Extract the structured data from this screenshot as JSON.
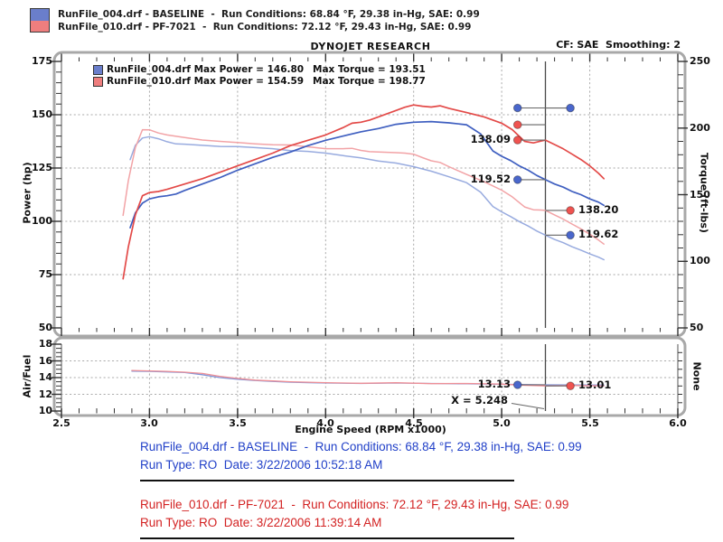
{
  "header": {
    "title": "DYNOJET RESEARCH",
    "cf_smoothing": "CF: SAE  Smoothing: 2"
  },
  "top_legend": {
    "rows": [
      {
        "text": "RunFile_004.drf - BASELINE  -  Run Conditions: 68.84 °F, 29.38 in-Hg, SAE: 0.99"
      },
      {
        "text": "RunFile_010.drf - PF-7021  -  Run Conditions: 72.12 °F, 29.43 in-Hg, SAE: 0.99"
      }
    ]
  },
  "colors": {
    "run1_power": "#3f5fc0",
    "run1_torque": "#98abdf",
    "run2_power": "#e34a48",
    "run2_torque": "#f2a3a6",
    "run1_swatch": "#6a7ecb",
    "run2_swatch": "#ef7e7e",
    "run1_dot": "#4a67cc",
    "run2_dot": "#ef5350",
    "footer_blue": "#2140c8",
    "footer_red": "#d32222",
    "grid": "#a9a9a9",
    "frame": "#a8a8a8",
    "cursor": "#4a4a4a"
  },
  "chart_data": [
    {
      "type": "line",
      "name": "power-torque-chart",
      "xlabel": "Engine Speed (RPM x1000)",
      "ylabel_left": "Power (hp)",
      "ylabel_right": "Torque (ft-lbs)",
      "xlim": [
        2.5,
        6.0
      ],
      "ylim_left": [
        50,
        175
      ],
      "ylim_right": [
        50,
        250
      ],
      "x_ticks": [
        2.5,
        3.0,
        3.5,
        4.0,
        4.5,
        5.0,
        5.5,
        6.0
      ],
      "y_ticks_left": [
        175,
        150,
        125,
        100,
        75,
        50
      ],
      "y_ticks_right": [
        250,
        200,
        150,
        100,
        50
      ],
      "grid": "dotted",
      "cursor_x": 5.248,
      "inner_legend": [
        {
          "swatch": "#6a7ecb",
          "power_text": "RunFile_004.drf Max Power = 146.80",
          "torque_text": "Max Torque = 193.51"
        },
        {
          "swatch": "#ef7e7e",
          "power_text": "RunFile_010.drf Max Power = 154.59",
          "torque_text": "Max Torque = 198.77"
        }
      ],
      "max_values": {
        "runfile_004": {
          "max_power": 146.8,
          "max_torque": 193.51
        },
        "runfile_010": {
          "max_power": 154.59,
          "max_torque": 198.77
        }
      },
      "series": [
        {
          "name": "RunFile_004.drf Torque",
          "axis": "right",
          "color": "#98abdf",
          "width": 1.5,
          "points": [
            [
              2.89,
              176.3
            ],
            [
              2.92,
              187.1
            ],
            [
              2.96,
              192.5
            ],
            [
              3.0,
              193.5
            ],
            [
              3.05,
              192.0
            ],
            [
              3.1,
              189.7
            ],
            [
              3.15,
              188.1
            ],
            [
              3.2,
              187.9
            ],
            [
              3.3,
              187.0
            ],
            [
              3.4,
              186.2
            ],
            [
              3.5,
              186.1
            ],
            [
              3.6,
              185.3
            ],
            [
              3.7,
              184.5
            ],
            [
              3.8,
              183.1
            ],
            [
              3.9,
              182.5
            ],
            [
              4.0,
              181.2
            ],
            [
              4.1,
              179.3
            ],
            [
              4.2,
              177.6
            ],
            [
              4.3,
              175.3
            ],
            [
              4.4,
              173.7
            ],
            [
              4.5,
              171.0
            ],
            [
              4.6,
              167.6
            ],
            [
              4.7,
              163.4
            ],
            [
              4.8,
              159.0
            ],
            [
              4.88,
              151.8
            ],
            [
              4.95,
              141.1
            ],
            [
              5.0,
              137.1
            ],
            [
              5.05,
              133.6
            ],
            [
              5.1,
              129.8
            ],
            [
              5.15,
              126.5
            ],
            [
              5.2,
              122.7
            ],
            [
              5.248,
              119.62
            ],
            [
              5.3,
              116.4
            ],
            [
              5.35,
              113.9
            ],
            [
              5.4,
              110.9
            ],
            [
              5.45,
              108.4
            ],
            [
              5.5,
              105.5
            ],
            [
              5.55,
              103.1
            ],
            [
              5.58,
              101.2
            ]
          ]
        },
        {
          "name": "RunFile_010.drf Torque",
          "axis": "right",
          "color": "#f2a3a6",
          "width": 1.5,
          "points": [
            [
              2.85,
              134.5
            ],
            [
              2.88,
              160.5
            ],
            [
              2.92,
              185.3
            ],
            [
              2.96,
              198.77
            ],
            [
              3.0,
              198.7
            ],
            [
              3.05,
              196.3
            ],
            [
              3.1,
              194.8
            ],
            [
              3.2,
              192.9
            ],
            [
              3.3,
              191.0
            ],
            [
              3.4,
              190.0
            ],
            [
              3.5,
              189.1
            ],
            [
              3.6,
              188.2
            ],
            [
              3.7,
              187.4
            ],
            [
              3.8,
              187.3
            ],
            [
              3.9,
              185.9
            ],
            [
              4.0,
              184.5
            ],
            [
              4.1,
              184.5
            ],
            [
              4.15,
              184.8
            ],
            [
              4.2,
              183.2
            ],
            [
              4.25,
              182.3
            ],
            [
              4.3,
              182.0
            ],
            [
              4.4,
              181.5
            ],
            [
              4.45,
              181.2
            ],
            [
              4.5,
              180.4
            ],
            [
              4.55,
              177.8
            ],
            [
              4.6,
              175.4
            ],
            [
              4.65,
              174.2
            ],
            [
              4.7,
              171.0
            ],
            [
              4.8,
              165.2
            ],
            [
              4.9,
              159.7
            ],
            [
              5.0,
              153.4
            ],
            [
              5.06,
              148.4
            ],
            [
              5.13,
              140.8
            ],
            [
              5.18,
              138.7
            ],
            [
              5.22,
              138.5
            ],
            [
              5.248,
              138.2
            ],
            [
              5.3,
              134.8
            ],
            [
              5.35,
              131.6
            ],
            [
              5.4,
              127.9
            ],
            [
              5.45,
              124.3
            ],
            [
              5.5,
              120.3
            ],
            [
              5.55,
              115.9
            ],
            [
              5.58,
              112.9
            ]
          ]
        },
        {
          "name": "RunFile_004.drf Power",
          "axis": "left",
          "color": "#3f5fc0",
          "width": 1.7,
          "points": [
            [
              2.89,
              97.0
            ],
            [
              2.92,
              104.0
            ],
            [
              2.96,
              108.5
            ],
            [
              3.0,
              110.5
            ],
            [
              3.05,
              111.5
            ],
            [
              3.1,
              112.0
            ],
            [
              3.15,
              112.8
            ],
            [
              3.2,
              114.5
            ],
            [
              3.3,
              117.5
            ],
            [
              3.4,
              120.5
            ],
            [
              3.5,
              124.0
            ],
            [
              3.6,
              127.0
            ],
            [
              3.7,
              130.0
            ],
            [
              3.8,
              132.5
            ],
            [
              3.9,
              135.5
            ],
            [
              4.0,
              138.0
            ],
            [
              4.1,
              140.0
            ],
            [
              4.2,
              142.0
            ],
            [
              4.3,
              143.5
            ],
            [
              4.4,
              145.5
            ],
            [
              4.5,
              146.5
            ],
            [
              4.6,
              146.8
            ],
            [
              4.7,
              146.2
            ],
            [
              4.8,
              145.3
            ],
            [
              4.88,
              141.0
            ],
            [
              4.95,
              133.0
            ],
            [
              5.0,
              130.5
            ],
            [
              5.05,
              128.5
            ],
            [
              5.1,
              126.0
            ],
            [
              5.15,
              124.0
            ],
            [
              5.2,
              121.5
            ],
            [
              5.248,
              119.52
            ],
            [
              5.3,
              117.5
            ],
            [
              5.35,
              116.0
            ],
            [
              5.4,
              114.0
            ],
            [
              5.45,
              112.5
            ],
            [
              5.5,
              110.5
            ],
            [
              5.55,
              109.0
            ],
            [
              5.58,
              107.5
            ]
          ]
        },
        {
          "name": "RunFile_010.drf Power",
          "axis": "left",
          "color": "#e34a48",
          "width": 1.7,
          "points": [
            [
              2.85,
              73.0
            ],
            [
              2.88,
              88.0
            ],
            [
              2.92,
              103.0
            ],
            [
              2.96,
              112.0
            ],
            [
              3.0,
              113.5
            ],
            [
              3.05,
              114.0
            ],
            [
              3.1,
              115.0
            ],
            [
              3.2,
              117.5
            ],
            [
              3.3,
              120.0
            ],
            [
              3.4,
              123.0
            ],
            [
              3.5,
              126.0
            ],
            [
              3.6,
              129.0
            ],
            [
              3.7,
              132.0
            ],
            [
              3.8,
              135.5
            ],
            [
              3.9,
              138.0
            ],
            [
              4.0,
              140.5
            ],
            [
              4.1,
              144.0
            ],
            [
              4.15,
              146.0
            ],
            [
              4.2,
              146.5
            ],
            [
              4.25,
              147.5
            ],
            [
              4.3,
              149.0
            ],
            [
              4.4,
              152.0
            ],
            [
              4.45,
              153.5
            ],
            [
              4.5,
              154.59
            ],
            [
              4.55,
              154.0
            ],
            [
              4.6,
              153.6
            ],
            [
              4.65,
              154.2
            ],
            [
              4.7,
              153.0
            ],
            [
              4.8,
              151.0
            ],
            [
              4.9,
              149.0
            ],
            [
              5.0,
              146.0
            ],
            [
              5.06,
              143.0
            ],
            [
              5.13,
              137.5
            ],
            [
              5.18,
              136.8
            ],
            [
              5.22,
              137.6
            ],
            [
              5.248,
              138.09
            ],
            [
              5.3,
              136.0
            ],
            [
              5.35,
              134.0
            ],
            [
              5.4,
              131.5
            ],
            [
              5.45,
              129.0
            ],
            [
              5.5,
              126.0
            ],
            [
              5.55,
              122.5
            ],
            [
              5.58,
              120.0
            ]
          ]
        }
      ],
      "cursor_labels": [
        {
          "text": "138.09",
          "value": 138.09,
          "axis": "left",
          "dot_rpm": 5.09,
          "side": "left",
          "dot_color": "#ef5350"
        },
        {
          "text": "119.52",
          "value": 119.52,
          "axis": "left",
          "dot_rpm": 5.09,
          "side": "left",
          "dot_color": "#4a67cc"
        },
        {
          "text": "138.20",
          "value": 138.2,
          "axis": "right",
          "dot_rpm": 5.39,
          "side": "right",
          "dot_color": "#ef5350"
        },
        {
          "text": "119.62",
          "value": 119.62,
          "axis": "right",
          "dot_rpm": 5.39,
          "side": "right",
          "dot_color": "#4a67cc"
        }
      ]
    },
    {
      "type": "line",
      "name": "air-fuel-chart",
      "ylabel_left": "Air/Fuel",
      "ylabel_right": "None",
      "ylim_left": [
        10,
        18
      ],
      "y_ticks_left": [
        18,
        16,
        14,
        12,
        10
      ],
      "grid": "dotted",
      "cursor_x": 5.248,
      "cursor_annotation": "X = 5.248",
      "series": [
        {
          "name": "RunFile_004.drf A/F",
          "color": "#8093d6",
          "width": 1.3,
          "points": [
            [
              2.9,
              14.78
            ],
            [
              3.0,
              14.75
            ],
            [
              3.1,
              14.68
            ],
            [
              3.2,
              14.6
            ],
            [
              3.3,
              14.35
            ],
            [
              3.4,
              14.0
            ],
            [
              3.5,
              13.8
            ],
            [
              3.6,
              13.65
            ],
            [
              3.7,
              13.55
            ],
            [
              3.8,
              13.45
            ],
            [
              3.9,
              13.4
            ],
            [
              4.0,
              13.35
            ],
            [
              4.2,
              13.3
            ],
            [
              4.4,
              13.35
            ],
            [
              4.6,
              13.3
            ],
            [
              4.8,
              13.25
            ],
            [
              5.0,
              13.2
            ],
            [
              5.1,
              13.17
            ],
            [
              5.248,
              13.13
            ],
            [
              5.4,
              13.12
            ],
            [
              5.58,
              13.1
            ]
          ]
        },
        {
          "name": "RunFile_010.drf A/F",
          "color": "#ee8f96",
          "width": 1.3,
          "points": [
            [
              2.9,
              14.85
            ],
            [
              3.0,
              14.8
            ],
            [
              3.1,
              14.75
            ],
            [
              3.2,
              14.65
            ],
            [
              3.3,
              14.5
            ],
            [
              3.4,
              14.15
            ],
            [
              3.5,
              13.9
            ],
            [
              3.6,
              13.7
            ],
            [
              3.7,
              13.6
            ],
            [
              3.8,
              13.5
            ],
            [
              3.9,
              13.45
            ],
            [
              4.0,
              13.4
            ],
            [
              4.2,
              13.32
            ],
            [
              4.4,
              13.38
            ],
            [
              4.6,
              13.28
            ],
            [
              4.8,
              13.3
            ],
            [
              5.0,
              13.22
            ],
            [
              5.1,
              13.1
            ],
            [
              5.248,
              13.01
            ],
            [
              5.4,
              13.05
            ],
            [
              5.58,
              13.02
            ]
          ]
        }
      ],
      "cursor_labels": [
        {
          "text": "13.13",
          "value": 13.13,
          "dot_rpm": 5.09,
          "side": "left",
          "dot_color": "#4a67cc"
        },
        {
          "text": "13.01",
          "value": 13.01,
          "dot_rpm": 5.39,
          "side": "right",
          "dot_color": "#ef5350"
        }
      ]
    }
  ],
  "footer": {
    "runs": [
      {
        "line1": "RunFile_004.drf - BASELINE  -  Run Conditions: 68.84 °F, 29.38 in-Hg, SAE: 0.99",
        "line2": "Run Type: RO  Date: 3/22/2006 10:52:18 AM"
      },
      {
        "line1": "RunFile_010.drf - PF-7021  -  Run Conditions: 72.12 °F, 29.43 in-Hg, SAE: 0.99",
        "line2": "Run Type: RO  Date: 3/22/2006 11:39:14 AM"
      }
    ]
  }
}
